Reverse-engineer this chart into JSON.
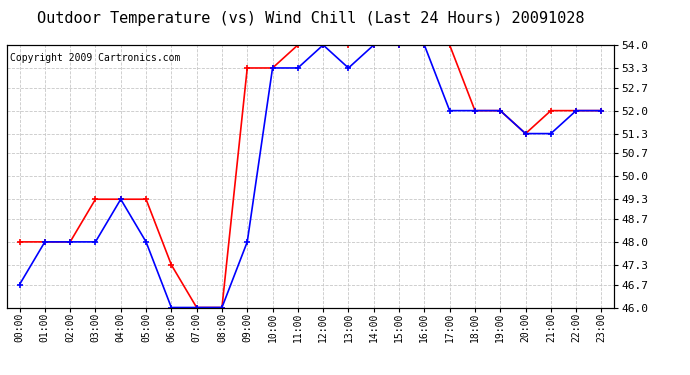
{
  "title": "Outdoor Temperature (vs) Wind Chill (Last 24 Hours) 20091028",
  "copyright": "Copyright 2009 Cartronics.com",
  "x_labels": [
    "00:00",
    "01:00",
    "02:00",
    "03:00",
    "04:00",
    "05:00",
    "06:00",
    "07:00",
    "08:00",
    "09:00",
    "10:00",
    "11:00",
    "12:00",
    "13:00",
    "14:00",
    "15:00",
    "16:00",
    "17:00",
    "18:00",
    "19:00",
    "20:00",
    "21:00",
    "22:00",
    "23:00"
  ],
  "temp_red": [
    48.0,
    48.0,
    48.0,
    49.3,
    49.3,
    49.3,
    47.3,
    46.0,
    46.0,
    53.3,
    53.3,
    54.0,
    54.0,
    54.0,
    54.0,
    54.0,
    54.0,
    54.0,
    52.0,
    52.0,
    51.3,
    52.0,
    52.0,
    52.0
  ],
  "temp_blue": [
    46.7,
    48.0,
    48.0,
    48.0,
    49.3,
    48.0,
    46.0,
    46.0,
    46.0,
    48.0,
    53.3,
    53.3,
    54.0,
    53.3,
    54.0,
    54.0,
    54.0,
    52.0,
    52.0,
    52.0,
    51.3,
    51.3,
    52.0,
    52.0
  ],
  "ylim": [
    46.0,
    54.0
  ],
  "yticks": [
    46.0,
    46.7,
    47.3,
    48.0,
    48.7,
    49.3,
    50.0,
    50.7,
    51.3,
    52.0,
    52.7,
    53.3,
    54.0
  ],
  "red_color": "#ff0000",
  "blue_color": "#0000ff",
  "bg_color": "#ffffff",
  "grid_color": "#c8c8c8",
  "title_fontsize": 11,
  "copyright_fontsize": 7,
  "tick_fontsize": 7,
  "ytick_fontsize": 8
}
